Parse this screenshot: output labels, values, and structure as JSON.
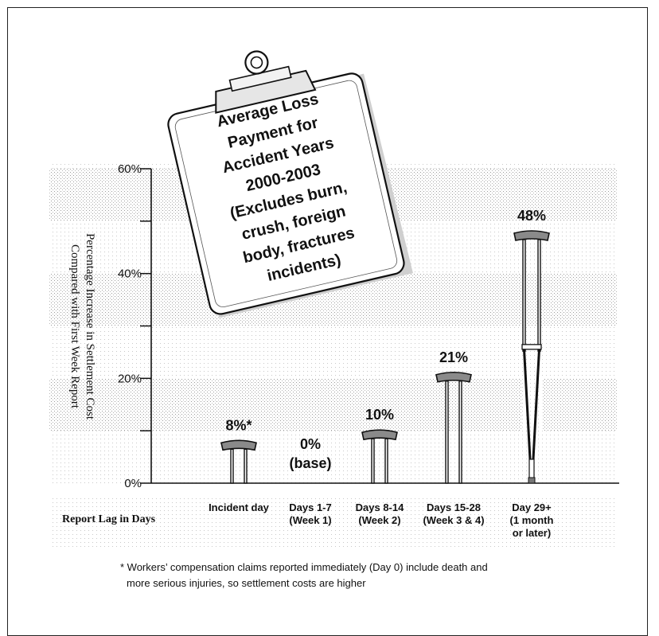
{
  "chart_data": {
    "type": "bar",
    "title_lines": [
      "Average Loss",
      "Payment for",
      "Accident Years",
      "2000-2003",
      "(Excludes burn,",
      "crush, foreign",
      "body, fractures",
      "incidents)"
    ],
    "ylabel_lines": [
      "Percentage Increase in Settlement Cost",
      "Compared with First Week Report"
    ],
    "xlabel": "Report Lag in Days",
    "ylim": [
      0,
      60
    ],
    "yticks": [
      {
        "value": 0,
        "label": "0%"
      },
      {
        "value": 20,
        "label": "20%"
      },
      {
        "value": 40,
        "label": "40%"
      },
      {
        "value": 60,
        "label": "60%"
      }
    ],
    "categories": [
      {
        "lines": [
          "Incident day"
        ]
      },
      {
        "lines": [
          "Days 1-7",
          "(Week 1)"
        ]
      },
      {
        "lines": [
          "Days 8-14",
          "(Week 2)"
        ]
      },
      {
        "lines": [
          "Days 15-28",
          "(Week 3 & 4)"
        ]
      },
      {
        "lines": [
          "Day 29+",
          "(1 month",
          "or later)"
        ]
      }
    ],
    "values": [
      8,
      0,
      10,
      21,
      48
    ],
    "value_labels": [
      [
        "8%*"
      ],
      [
        "0%",
        "(base)"
      ],
      [
        "10%"
      ],
      [
        "21%"
      ],
      [
        "48%"
      ]
    ],
    "bar_style": "crutch",
    "background_bands": true
  },
  "footnote_lines": [
    "* Workers’ compensation claims reported immediately (Day 0) include death and",
    "more serious injuries, so settlement costs are higher"
  ]
}
